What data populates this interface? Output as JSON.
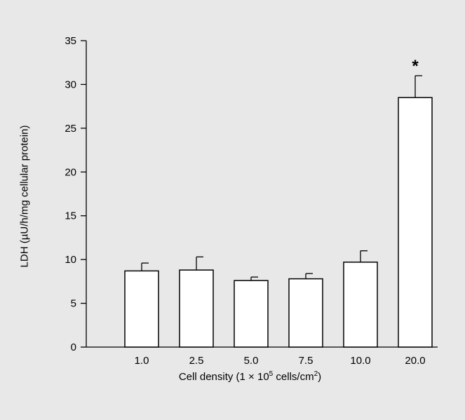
{
  "chart_data": {
    "type": "bar",
    "categories": [
      "1.0",
      "2.5",
      "5.0",
      "7.5",
      "10.0",
      "20.0"
    ],
    "values": [
      8.7,
      8.8,
      7.6,
      7.8,
      9.7,
      28.5
    ],
    "errors": [
      0.9,
      1.5,
      0.4,
      0.6,
      1.3,
      2.5
    ],
    "annotations": [
      "",
      "",
      "",
      "",
      "",
      "*"
    ],
    "ylim": [
      0,
      35
    ],
    "yticks": [
      0,
      5,
      10,
      15,
      20,
      25,
      30,
      35
    ],
    "title": "",
    "ylabel": "LDH (µU/h/mg cellular protein)",
    "xlabel": {
      "text_before": "Cell density (1 × 10",
      "superscript": "5",
      "text_middle": " cells/cm",
      "superscript2": "2",
      "text_after": ")"
    },
    "grid": false,
    "bar_color": "#ffffff",
    "bar_edge_color": "#000000"
  }
}
